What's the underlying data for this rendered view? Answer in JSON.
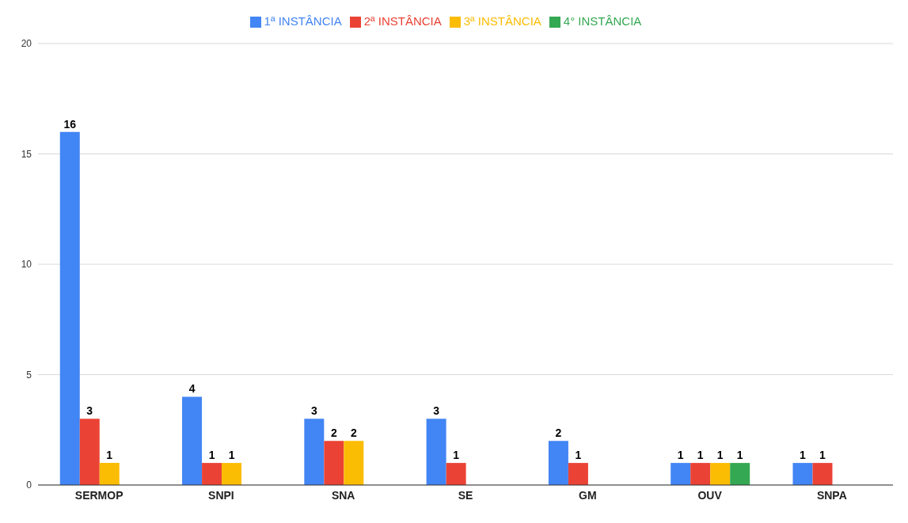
{
  "chart_data": {
    "type": "bar",
    "categories": [
      "SERMOP",
      "SNPI",
      "SNA",
      "SE",
      "GM",
      "OUV",
      "SNPA"
    ],
    "series": [
      {
        "name": "1ª INSTÂNCIA",
        "color": "#4285f4",
        "values": [
          16,
          4,
          3,
          3,
          2,
          1,
          1
        ]
      },
      {
        "name": "2ª INSTÂNCIA",
        "color": "#ea4335",
        "values": [
          3,
          1,
          2,
          1,
          1,
          1,
          1
        ]
      },
      {
        "name": "3ª INSTÂNCIA",
        "color": "#fbbc04",
        "values": [
          1,
          1,
          2,
          null,
          null,
          1,
          null
        ]
      },
      {
        "name": "4° INSTÂNCIA",
        "color": "#34a853",
        "values": [
          null,
          null,
          null,
          null,
          null,
          1,
          null
        ]
      }
    ],
    "ylim": [
      0,
      20
    ],
    "yticks": [
      0,
      5,
      10,
      15,
      20
    ],
    "grid": "y",
    "legend": "top",
    "data_labels": true
  }
}
